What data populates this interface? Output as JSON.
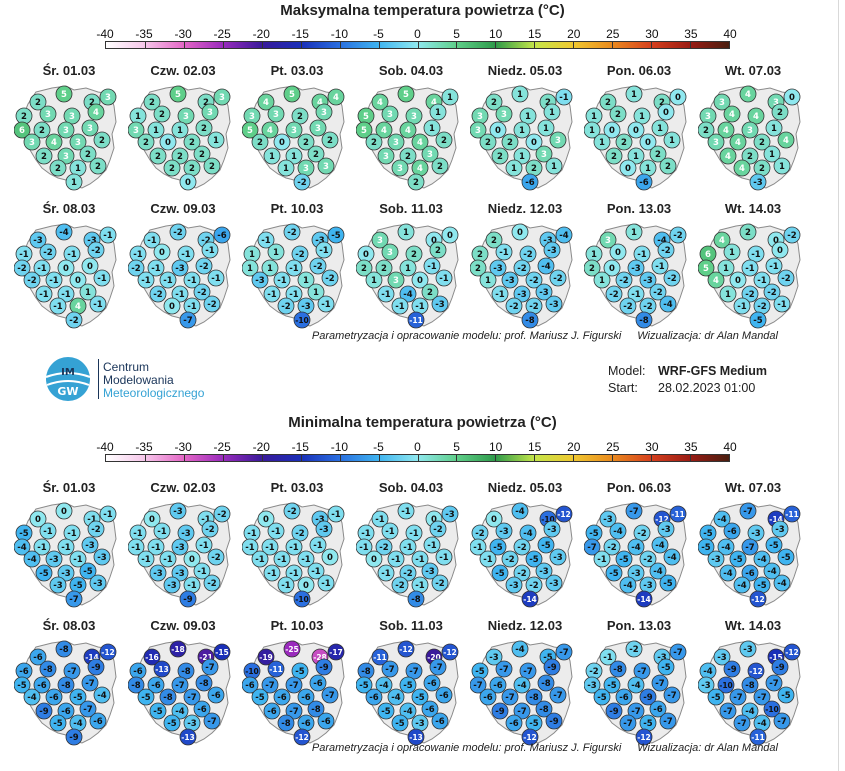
{
  "max_section": {
    "title": "Maksymalna temperatura powietrza (°C)",
    "days": [
      {
        "label": "Śr. 01.03",
        "values": [
          2,
          5,
          2,
          3,
          2,
          3,
          3,
          4,
          6,
          2,
          3,
          3,
          3,
          4,
          3,
          2,
          2,
          3,
          2,
          2,
          1,
          2,
          1
        ]
      },
      {
        "label": "Czw. 02.03",
        "values": [
          2,
          5,
          2,
          3,
          1,
          2,
          3,
          3,
          3,
          1,
          1,
          2,
          2,
          0,
          2,
          1,
          2,
          2,
          2,
          2,
          2,
          2,
          0
        ]
      },
      {
        "label": "Pt. 03.03",
        "values": [
          4,
          5,
          4,
          4,
          3,
          3,
          2,
          3,
          5,
          4,
          3,
          3,
          2,
          0,
          2,
          2,
          1,
          1,
          2,
          1,
          3,
          3,
          -2
        ]
      },
      {
        "label": "Sob. 04.03",
        "values": [
          4,
          5,
          4,
          1,
          5,
          3,
          3,
          1,
          5,
          4,
          4,
          1,
          2,
          3,
          4,
          2,
          3,
          2,
          3,
          3,
          4,
          2,
          2
        ]
      },
      {
        "label": "Niedz. 05.03",
        "values": [
          2,
          1,
          2,
          -1,
          3,
          3,
          1,
          1,
          3,
          0,
          1,
          1,
          2,
          2,
          0,
          3,
          2,
          1,
          3,
          1,
          2,
          1,
          -6
        ]
      },
      {
        "label": "Pon. 06.03",
        "values": [
          2,
          1,
          2,
          0,
          1,
          2,
          1,
          0,
          1,
          0,
          0,
          1,
          1,
          2,
          0,
          1,
          2,
          1,
          2,
          0,
          1,
          2,
          -6
        ]
      },
      {
        "label": "Wt. 07.03",
        "values": [
          3,
          4,
          3,
          0,
          3,
          4,
          4,
          2,
          2,
          4,
          3,
          1,
          3,
          4,
          2,
          4,
          4,
          2,
          1,
          4,
          2,
          1,
          -3
        ]
      },
      {
        "label": "Śr. 08.03",
        "values": [
          -3,
          -4,
          -3,
          -1,
          -1,
          -2,
          -1,
          -2,
          -2,
          -1,
          0,
          0,
          -2,
          -1,
          0,
          -1,
          -1,
          -1,
          1,
          -1,
          4,
          -1,
          -2
        ]
      },
      {
        "label": "Czw. 09.03",
        "values": [
          -1,
          -2,
          -2,
          -6,
          -1,
          0,
          -1,
          -1,
          -2,
          -1,
          -3,
          -2,
          -1,
          -1,
          -1,
          -1,
          -2,
          -1,
          -2,
          0,
          -1,
          -2,
          -7
        ]
      },
      {
        "label": "Pt. 10.03",
        "values": [
          -1,
          -2,
          -3,
          -5,
          1,
          1,
          -2,
          -1,
          1,
          1,
          -1,
          -2,
          -3,
          -1,
          1,
          -2,
          -1,
          -1,
          1,
          -2,
          -3,
          -1,
          -10
        ]
      },
      {
        "label": "Sob. 11.03",
        "values": [
          3,
          1,
          0,
          0,
          0,
          3,
          2,
          2,
          2,
          2,
          1,
          -1,
          1,
          3,
          0,
          -1,
          -1,
          -4,
          2,
          -1,
          -1,
          -3,
          -11
        ]
      },
      {
        "label": "Niedz. 12.03",
        "values": [
          2,
          0,
          -3,
          -4,
          2,
          -1,
          -2,
          -3,
          2,
          -3,
          -2,
          -4,
          1,
          -3,
          -2,
          -2,
          -1,
          -3,
          -3,
          -2,
          -2,
          -3,
          -8
        ]
      },
      {
        "label": "Pon. 13.03",
        "values": [
          3,
          1,
          -4,
          -2,
          1,
          0,
          -1,
          -2,
          2,
          0,
          -3,
          -1,
          1,
          -2,
          -3,
          -2,
          -2,
          -1,
          -2,
          -2,
          -2,
          -4,
          -8
        ]
      },
      {
        "label": "Wt. 14.03",
        "values": [
          4,
          2,
          0,
          -2,
          6,
          1,
          -1,
          0,
          5,
          1,
          -1,
          -1,
          4,
          0,
          -1,
          -2,
          1,
          -2,
          -2,
          -1,
          -2,
          -1,
          -5
        ]
      }
    ]
  },
  "min_section": {
    "title": "Minimalna temperatura powietrza (°C)",
    "days": [
      {
        "label": "Śr. 01.03",
        "values": [
          0,
          0,
          -1,
          -1,
          -5,
          -1,
          -1,
          -2,
          -4,
          -1,
          -1,
          -3,
          -4,
          -3,
          -1,
          -3,
          -5,
          -3,
          -5,
          -3,
          -5,
          -3,
          -7
        ]
      },
      {
        "label": "Czw. 02.03",
        "values": [
          0,
          -3,
          -1,
          -2,
          -1,
          -1,
          -3,
          -2,
          -1,
          -1,
          -3,
          -1,
          -1,
          -1,
          0,
          -2,
          -3,
          -3,
          -1,
          -3,
          -1,
          -2,
          -9
        ]
      },
      {
        "label": "Pt. 03.03",
        "values": [
          0,
          -2,
          -3,
          -1,
          -1,
          -1,
          -2,
          -3,
          -1,
          -1,
          -1,
          -1,
          -1,
          -1,
          -1,
          0,
          -1,
          -1,
          -1,
          -1,
          0,
          -1,
          -10
        ]
      },
      {
        "label": "Sob. 04.03",
        "values": [
          -1,
          -1,
          0,
          -3,
          -1,
          -1,
          -1,
          -2,
          -1,
          -2,
          -1,
          -1,
          0,
          -1,
          -1,
          -1,
          -1,
          -2,
          -3,
          -2,
          -1,
          -2,
          -8
        ]
      },
      {
        "label": "Niedz. 05.03",
        "values": [
          0,
          -4,
          -10,
          -12,
          -2,
          -3,
          -4,
          -3,
          -1,
          -5,
          -2,
          -5,
          -1,
          -2,
          -5,
          -3,
          -5,
          -2,
          -3,
          -3,
          -2,
          -3,
          -14
        ]
      },
      {
        "label": "Pon. 06.03",
        "values": [
          -3,
          -7,
          -12,
          -11,
          -5,
          -4,
          -2,
          -3,
          -7,
          -2,
          -4,
          -4,
          -1,
          -5,
          -2,
          -4,
          -5,
          -3,
          -4,
          -4,
          -3,
          -5,
          -14
        ]
      },
      {
        "label": "Wt. 07.03",
        "values": [
          -4,
          -7,
          -14,
          -11,
          -5,
          -6,
          -3,
          -3,
          -5,
          -4,
          -7,
          -5,
          -3,
          -5,
          -4,
          -5,
          -4,
          -6,
          -4,
          -4,
          -5,
          -4,
          -12
        ]
      },
      {
        "label": "Śr. 08.03",
        "values": [
          -6,
          -8,
          -14,
          -12,
          -6,
          -8,
          -7,
          -9,
          -5,
          -6,
          -8,
          -7,
          -4,
          -6,
          -5,
          -4,
          -9,
          -6,
          -7,
          -5,
          -4,
          -6,
          -9
        ]
      },
      {
        "label": "Czw. 09.03",
        "values": [
          -16,
          -18,
          -21,
          -15,
          -6,
          -13,
          -8,
          -7,
          -8,
          -6,
          -7,
          -8,
          -5,
          -8,
          -7,
          -6,
          -5,
          -4,
          -6,
          -5,
          -3,
          -7,
          -13
        ]
      },
      {
        "label": "Pt. 10.03",
        "values": [
          -19,
          -25,
          -28,
          -17,
          -10,
          -11,
          -5,
          -9,
          -6,
          -7,
          -7,
          -6,
          -5,
          -6,
          -6,
          -7,
          -6,
          -7,
          -8,
          -8,
          -6,
          -6,
          -12
        ]
      },
      {
        "label": "Sob. 11.03",
        "values": [
          -11,
          -12,
          -20,
          -12,
          -8,
          -7,
          -7,
          -7,
          -5,
          -4,
          -5,
          -6,
          -6,
          -4,
          -5,
          -6,
          -5,
          -4,
          -6,
          -5,
          -3,
          -6,
          -13
        ]
      },
      {
        "label": "Niedz. 12.03",
        "values": [
          -3,
          -4,
          -5,
          -7,
          -5,
          -7,
          -7,
          -9,
          -7,
          -6,
          -4,
          -8,
          -6,
          -7,
          -8,
          -7,
          -9,
          -7,
          -8,
          -6,
          -5,
          -9,
          -12
        ]
      },
      {
        "label": "Pon. 13.03",
        "values": [
          -1,
          -2,
          -3,
          -7,
          -2,
          -8,
          -7,
          -5,
          -3,
          -5,
          -4,
          -7,
          -5,
          -6,
          -9,
          -7,
          -9,
          -7,
          -6,
          -7,
          -5,
          -7,
          -12
        ]
      },
      {
        "label": "Wt. 14.03",
        "values": [
          -3,
          -3,
          -15,
          -12,
          -4,
          -9,
          -12,
          -9,
          -3,
          -10,
          -8,
          -7,
          -5,
          -7,
          -7,
          -5,
          -7,
          -4,
          -10,
          -7,
          -4,
          -7,
          -11
        ]
      }
    ]
  },
  "scale": {
    "ticks": [
      "-40",
      "-35",
      "-30",
      "-25",
      "-20",
      "-15",
      "-10",
      "-5",
      "0",
      "5",
      "10",
      "15",
      "20",
      "25",
      "30",
      "35",
      "40"
    ],
    "colors": [
      "#ffffff",
      "#f6c6ea",
      "#e466c6",
      "#9a2bbd",
      "#3a1a9a",
      "#1a2fb8",
      "#2a6fe0",
      "#3fb4f0",
      "#8fe8ef",
      "#5fcf8a",
      "#2e9a4a",
      "#c4e64a",
      "#f0c830",
      "#ea8a1e",
      "#d6401e",
      "#9a1c14",
      "#4a1e10"
    ]
  },
  "credits": {
    "author": "Parametryzacja i opracowanie modelu: prof. Mariusz J. Figurski",
    "visualization": "Wizualizacja: dr Alan Mandal"
  },
  "logo": {
    "line1": "Centrum",
    "line2": "Modelowania",
    "line3": "Meteorologicznego",
    "mark": "IMGW"
  },
  "model": {
    "model_key": "Model:",
    "model_value": "WRF-GFS Medium",
    "start_key": "Start:",
    "start_value": "28.02.2023 01:00"
  }
}
